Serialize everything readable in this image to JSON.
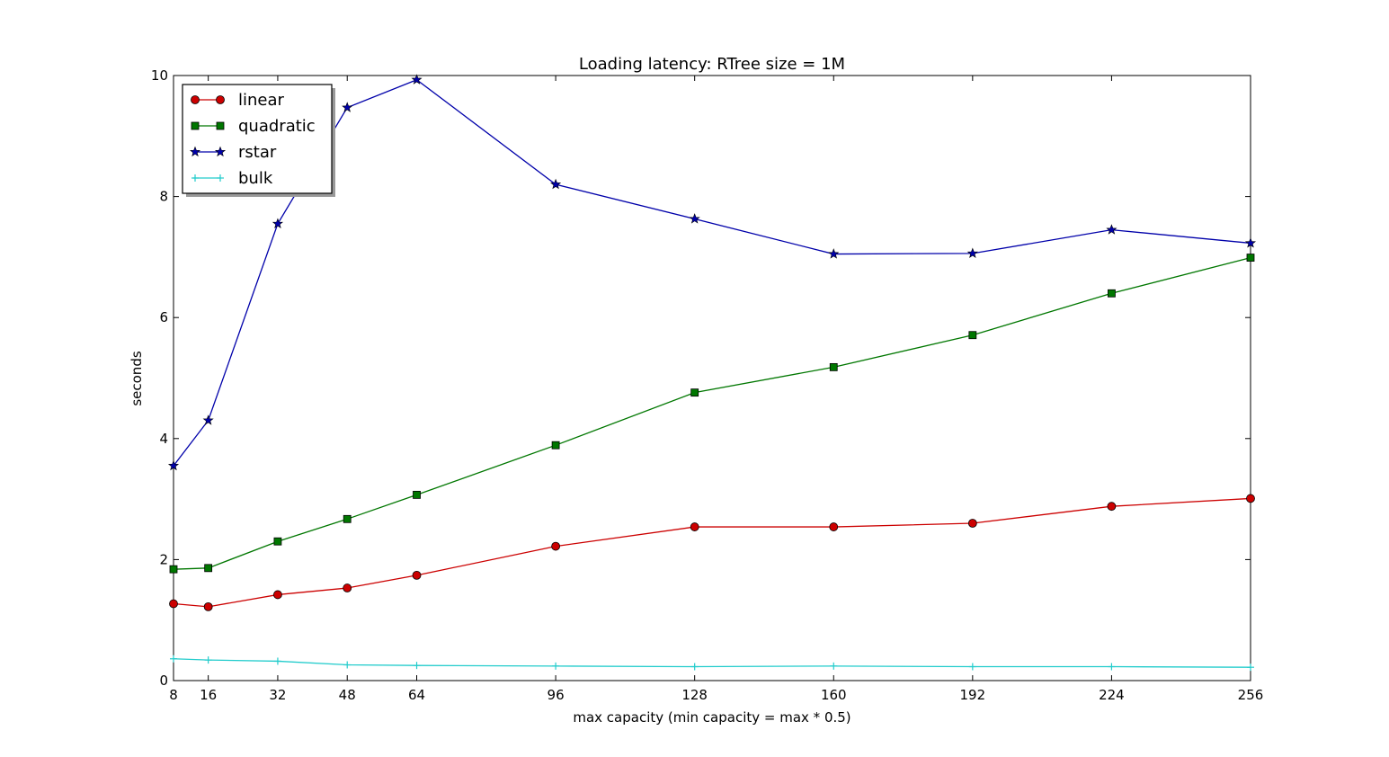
{
  "chart_data": {
    "type": "line",
    "title": "Loading latency: RTree size = 1M",
    "xlabel": "max capacity (min capacity = max * 0.5)",
    "ylabel": "seconds",
    "xlim": [
      8,
      256
    ],
    "ylim": [
      0,
      10
    ],
    "xticks": [
      8,
      16,
      32,
      48,
      64,
      96,
      128,
      160,
      192,
      224,
      256
    ],
    "yticks": [
      0,
      2,
      4,
      6,
      8,
      10
    ],
    "grid": false,
    "legend_position": "top-left",
    "x": [
      8,
      16,
      32,
      48,
      64,
      96,
      128,
      160,
      192,
      224,
      256
    ],
    "series": [
      {
        "name": "linear",
        "color": "#cc0000",
        "marker": "circle",
        "values": [
          1.27,
          1.22,
          1.42,
          1.53,
          1.74,
          2.22,
          2.54,
          2.54,
          2.6,
          2.88,
          3.01
        ]
      },
      {
        "name": "quadratic",
        "color": "#007700",
        "marker": "square",
        "values": [
          1.84,
          1.86,
          2.3,
          2.67,
          3.07,
          3.89,
          4.76,
          5.18,
          5.71,
          6.4,
          6.99
        ]
      },
      {
        "name": "rstar",
        "color": "#0000aa",
        "marker": "star",
        "values": [
          3.55,
          4.3,
          7.55,
          9.47,
          9.93,
          8.2,
          7.63,
          7.05,
          7.06,
          7.45,
          7.23
        ]
      },
      {
        "name": "bulk",
        "color": "#22cccc",
        "marker": "plus",
        "values": [
          0.36,
          0.34,
          0.32,
          0.26,
          0.25,
          0.24,
          0.23,
          0.24,
          0.23,
          0.23,
          0.22
        ]
      }
    ]
  }
}
